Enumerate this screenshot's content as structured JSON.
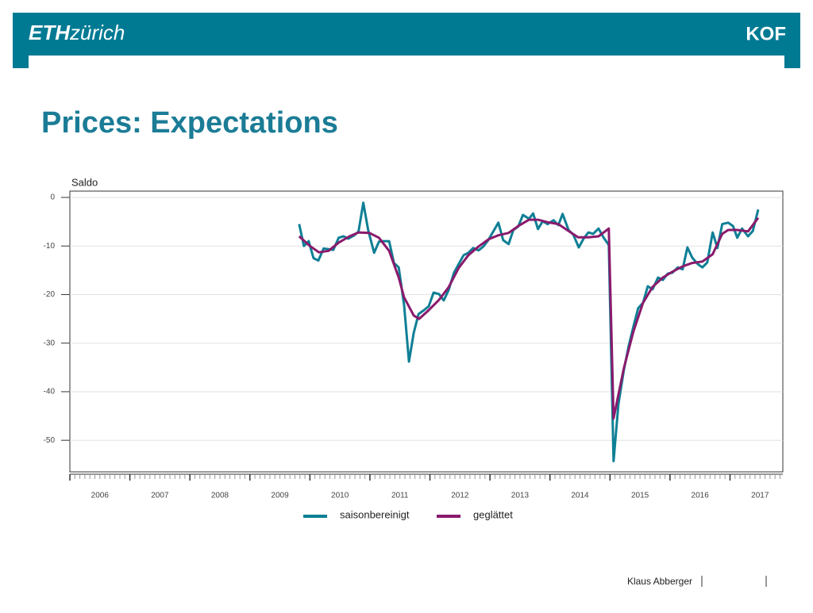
{
  "header": {
    "logo_bold": "ETH",
    "logo_rest": "zürich",
    "brand": "KOF"
  },
  "footer": {
    "author": "Klaus Abberger"
  },
  "chart_data": {
    "type": "line",
    "title": "Prices: Expectations",
    "y_label": "Saldo",
    "xlim": [
      2006,
      2017.88
    ],
    "xticks": [
      2006,
      2007,
      2008,
      2009,
      2010,
      2011,
      2012,
      2013,
      2014,
      2015,
      2016,
      2017
    ],
    "ylim": [
      -56.5,
      1.3
    ],
    "yticks": [
      0,
      -10,
      -20,
      -30,
      -40,
      -50
    ],
    "grid": true,
    "legend": "bottom",
    "series": [
      {
        "name": "saisonbereinigt",
        "color": "#0e7f95",
        "x": [
          2009.82,
          2009.9,
          2009.98,
          2010.06,
          2010.14,
          2010.23,
          2010.39,
          2010.48,
          2010.56,
          2010.64,
          2010.74,
          2010.81,
          2010.89,
          2010.97,
          2011.07,
          2011.15,
          2011.22,
          2011.32,
          2011.4,
          2011.48,
          2011.57,
          2011.65,
          2011.73,
          2011.81,
          2011.9,
          2011.98,
          2012.06,
          2012.15,
          2012.23,
          2012.31,
          2012.4,
          2012.56,
          2012.64,
          2012.72,
          2012.81,
          2012.89,
          2012.97,
          2013.06,
          2013.14,
          2013.22,
          2013.31,
          2013.39,
          2013.47,
          2013.55,
          2013.65,
          2013.72,
          2013.8,
          2013.88,
          2013.96,
          2014.06,
          2014.14,
          2014.21,
          2014.31,
          2014.39,
          2014.48,
          2014.56,
          2014.64,
          2014.72,
          2014.81,
          2014.89,
          2014.98,
          2015.06,
          2015.14,
          2015.23,
          2015.31,
          2015.39,
          2015.47,
          2015.55,
          2015.63,
          2015.71,
          2015.8,
          2015.88,
          2015.96,
          2016.04,
          2016.13,
          2016.21,
          2016.29,
          2016.37,
          2016.46,
          2016.54,
          2016.62,
          2016.71,
          2016.79,
          2016.87,
          2016.97,
          2017.05,
          2017.12,
          2017.2,
          2017.3,
          2017.38,
          2017.47
        ],
        "values": [
          -5.5,
          -10,
          -9,
          -12.5,
          -13,
          -10.5,
          -10.8,
          -8.3,
          -8,
          -8.5,
          -7.8,
          -7,
          -1.1,
          -6.7,
          -11.4,
          -9.1,
          -9,
          -9,
          -13.5,
          -14.4,
          -22.2,
          -33.8,
          -27.9,
          -24,
          -23.2,
          -22.4,
          -19.6,
          -19.9,
          -21.2,
          -19.1,
          -15.5,
          -11.9,
          -11.4,
          -10.4,
          -10.9,
          -10.1,
          -8.8,
          -6.9,
          -5.2,
          -8.8,
          -9.6,
          -6.7,
          -6,
          -3.6,
          -4.4,
          -3.3,
          -6.5,
          -4.9,
          -5.5,
          -4.7,
          -5.7,
          -3.4,
          -6.7,
          -7.7,
          -10.3,
          -8.5,
          -7.2,
          -7.5,
          -6.4,
          -8.2,
          -9.8,
          -54.3,
          -42.6,
          -35.6,
          -30.7,
          -26.6,
          -22.8,
          -21.7,
          -18.3,
          -18.9,
          -16.5,
          -17,
          -15.7,
          -15.5,
          -14.4,
          -14.8,
          -10.3,
          -12.4,
          -13.7,
          -14.4,
          -13.4,
          -7.2,
          -10.4,
          -5.5,
          -5.2,
          -5.9,
          -8.3,
          -6.4,
          -8,
          -6.9,
          -2.5
        ]
      },
      {
        "name": "geglättet",
        "color": "#8a1a6c",
        "x": [
          2009.82,
          2010.0,
          2010.15,
          2010.31,
          2010.48,
          2010.66,
          2010.81,
          2010.99,
          2011.15,
          2011.32,
          2011.48,
          2011.57,
          2011.73,
          2011.82,
          2011.98,
          2012.15,
          2012.31,
          2012.48,
          2012.64,
          2012.81,
          2012.98,
          2013.14,
          2013.31,
          2013.47,
          2013.65,
          2013.8,
          2013.96,
          2014.14,
          2014.31,
          2014.47,
          2014.64,
          2014.81,
          2014.98,
          2015.06,
          2015.23,
          2015.39,
          2015.55,
          2015.71,
          2015.88,
          2016.04,
          2016.21,
          2016.37,
          2016.54,
          2016.71,
          2016.87,
          2016.97,
          2017.12,
          2017.3,
          2017.47
        ],
        "values": [
          -8,
          -10,
          -11.3,
          -11,
          -9.3,
          -8,
          -7.2,
          -7.3,
          -8.3,
          -11,
          -16.5,
          -20.6,
          -24.3,
          -25,
          -23.2,
          -21.1,
          -18.5,
          -14.5,
          -11.9,
          -10.1,
          -8.6,
          -7.8,
          -7.3,
          -5.9,
          -4.6,
          -4.6,
          -5.1,
          -5.5,
          -6.9,
          -8.2,
          -8.2,
          -8,
          -6.4,
          -45.5,
          -35.2,
          -27.6,
          -21.7,
          -18.4,
          -16.5,
          -15.3,
          -14.2,
          -13.5,
          -13.2,
          -11.7,
          -7.5,
          -6.7,
          -6.7,
          -7,
          -4.2
        ]
      }
    ]
  }
}
